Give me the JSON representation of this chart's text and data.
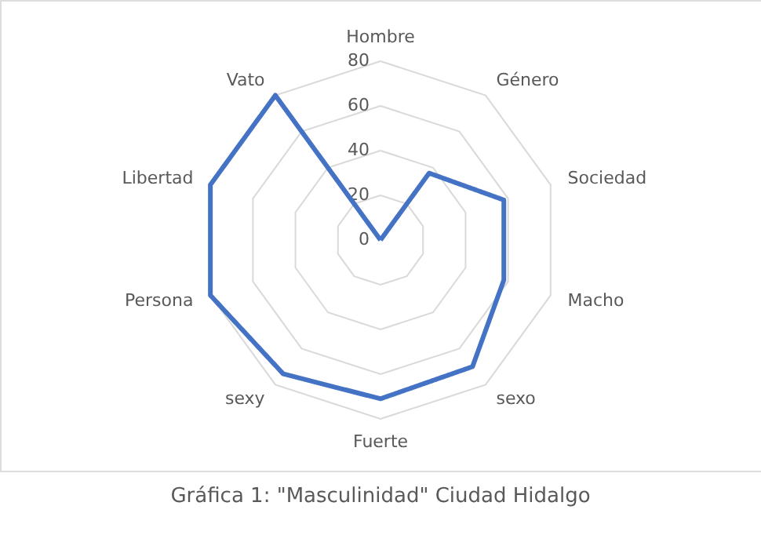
{
  "chart_data": {
    "type": "radar",
    "title": "Gráfica 1: \"Masculinidad\" Ciudad Hidalgo",
    "categories": [
      "Hombre",
      "Género",
      "Sociedad",
      "Macho",
      "sexo",
      "Fuerte",
      "sexy",
      "Persona",
      "Libertad",
      "Vato"
    ],
    "series": [
      {
        "color": "#4472c4",
        "values": [
          0,
          37,
          58,
          58,
          70,
          71,
          74,
          80,
          80,
          80
        ]
      }
    ],
    "ylim": [
      0,
      80
    ],
    "yticks": [
      0,
      20,
      40,
      60,
      80
    ],
    "grid": true,
    "line_style": "solid",
    "marker": "none"
  }
}
